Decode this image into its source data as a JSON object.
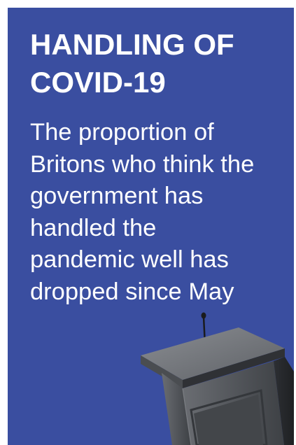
{
  "card": {
    "title": "HANDLING OF\nCOVID-19",
    "body": "The proportion of\nBritons who think the\ngovernment has\nhandled the\npandemic well has\ndropped since May",
    "background_color": "#3a4ea0",
    "text_color": "#ffffff",
    "illustration": "podium-icon"
  }
}
